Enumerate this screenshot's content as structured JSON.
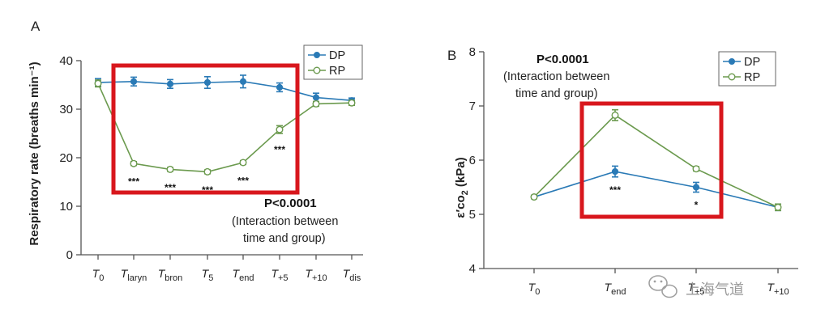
{
  "chart_data": [
    {
      "panel": "A",
      "type": "line",
      "ylabel": "Respiratory rate (breaths min⁻¹)",
      "ylim": [
        0,
        40
      ],
      "yticks": [
        0,
        10,
        20,
        30,
        40
      ],
      "grid": false,
      "legend_position": "top-right",
      "categories": [
        {
          "main": "T",
          "sub": "0"
        },
        {
          "main": "T",
          "sub": "laryn"
        },
        {
          "main": "T",
          "sub": "bron"
        },
        {
          "main": "T",
          "sub": "5"
        },
        {
          "main": "T",
          "sub": "end"
        },
        {
          "main": "T",
          "sub": "+5"
        },
        {
          "main": "T",
          "sub": "+10"
        },
        {
          "main": "T",
          "sub": "dis"
        }
      ],
      "series": [
        {
          "name": "DP",
          "color": "#2a7ab6",
          "marker": "filled-circle",
          "values": [
            35.5,
            35.7,
            35.2,
            35.5,
            35.7,
            34.5,
            32.4,
            31.8
          ],
          "errors": [
            0.8,
            0.9,
            0.9,
            1.2,
            1.3,
            0.9,
            0.9,
            0.5
          ]
        },
        {
          "name": "RP",
          "color": "#6b9a4e",
          "marker": "open-circle",
          "values": [
            35.3,
            18.8,
            17.6,
            17.1,
            19.0,
            25.8,
            31.1,
            31.3
          ],
          "errors": [
            0.7,
            0.4,
            0.4,
            0.4,
            0.4,
            0.8,
            0.5,
            0.5
          ]
        }
      ],
      "significance": [
        {
          "index": 1,
          "label": "***"
        },
        {
          "index": 2,
          "label": "***"
        },
        {
          "index": 3,
          "label": "***"
        },
        {
          "index": 4,
          "label": "***"
        },
        {
          "index": 5,
          "label": "***"
        }
      ],
      "stat_p": "P<0.0001",
      "stat_note": [
        "(Interaction between",
        "time and group)"
      ]
    },
    {
      "panel": "B",
      "type": "line",
      "ylabel_main": "ε′co",
      "ylabel_sub": "2",
      "ylabel_unit": " (kPa)",
      "ylim": [
        4,
        8
      ],
      "yticks": [
        4,
        5,
        6,
        7,
        8
      ],
      "grid": false,
      "legend_position": "top-right",
      "categories": [
        {
          "main": "T",
          "sub": "0"
        },
        {
          "main": "T",
          "sub": "end"
        },
        {
          "main": "T",
          "sub": "+5"
        },
        {
          "main": "T",
          "sub": "+10"
        }
      ],
      "series": [
        {
          "name": "DP",
          "color": "#2a7ab6",
          "marker": "filled-circle",
          "values": [
            5.32,
            5.79,
            5.5,
            5.13
          ],
          "errors": [
            0.03,
            0.1,
            0.09,
            0.06
          ]
        },
        {
          "name": "RP",
          "color": "#6b9a4e",
          "marker": "open-circle",
          "values": [
            5.32,
            6.83,
            5.84,
            5.13
          ],
          "errors": [
            0.03,
            0.1,
            0.04,
            0.06
          ]
        }
      ],
      "significance": [
        {
          "index": 1,
          "label": "***"
        },
        {
          "index": 2,
          "label": "*"
        }
      ],
      "stat_p": "P<0.0001",
      "stat_note": [
        "(Interaction between",
        "time and group)"
      ]
    }
  ],
  "highlight_color": "#d8171d",
  "watermark": {
    "icon": "wechat-icon",
    "text": "上海气道"
  }
}
